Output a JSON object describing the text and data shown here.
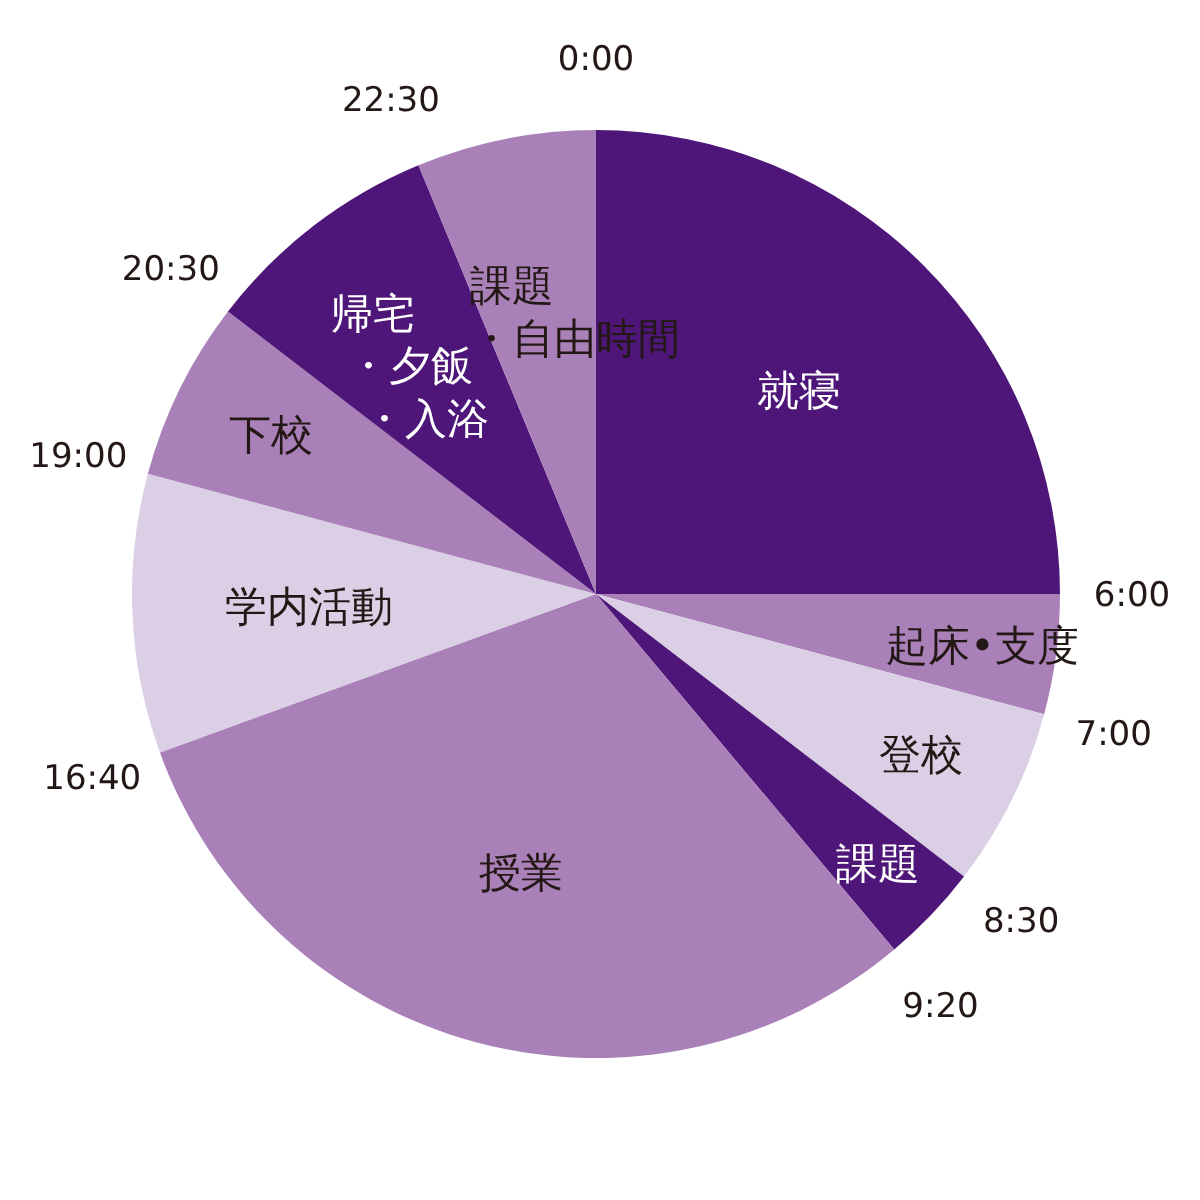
{
  "chart_data": {
    "type": "pie",
    "categories": [
      "就寝",
      "起床•支度",
      "登校",
      "課題",
      "授業",
      "学内活動",
      "下校",
      "帰宅・夕飯・入浴",
      "課題・自由時間"
    ],
    "values": [
      25,
      4.17,
      6.25,
      3.47,
      30.56,
      9.72,
      6.25,
      8.33,
      6.25
    ],
    "colors": [
      "#4e1678",
      "#a981b8",
      "#dacfe4",
      "#4e1678",
      "#a981b8",
      "#dacfe4",
      "#a981b8",
      "#4e1678",
      "#a981b8"
    ],
    "annotations": [
      "0:00",
      "6:00",
      "7:00",
      "8:30",
      "9:20",
      "16:40",
      "19:00",
      "20:30",
      "22:30"
    ]
  }
}
